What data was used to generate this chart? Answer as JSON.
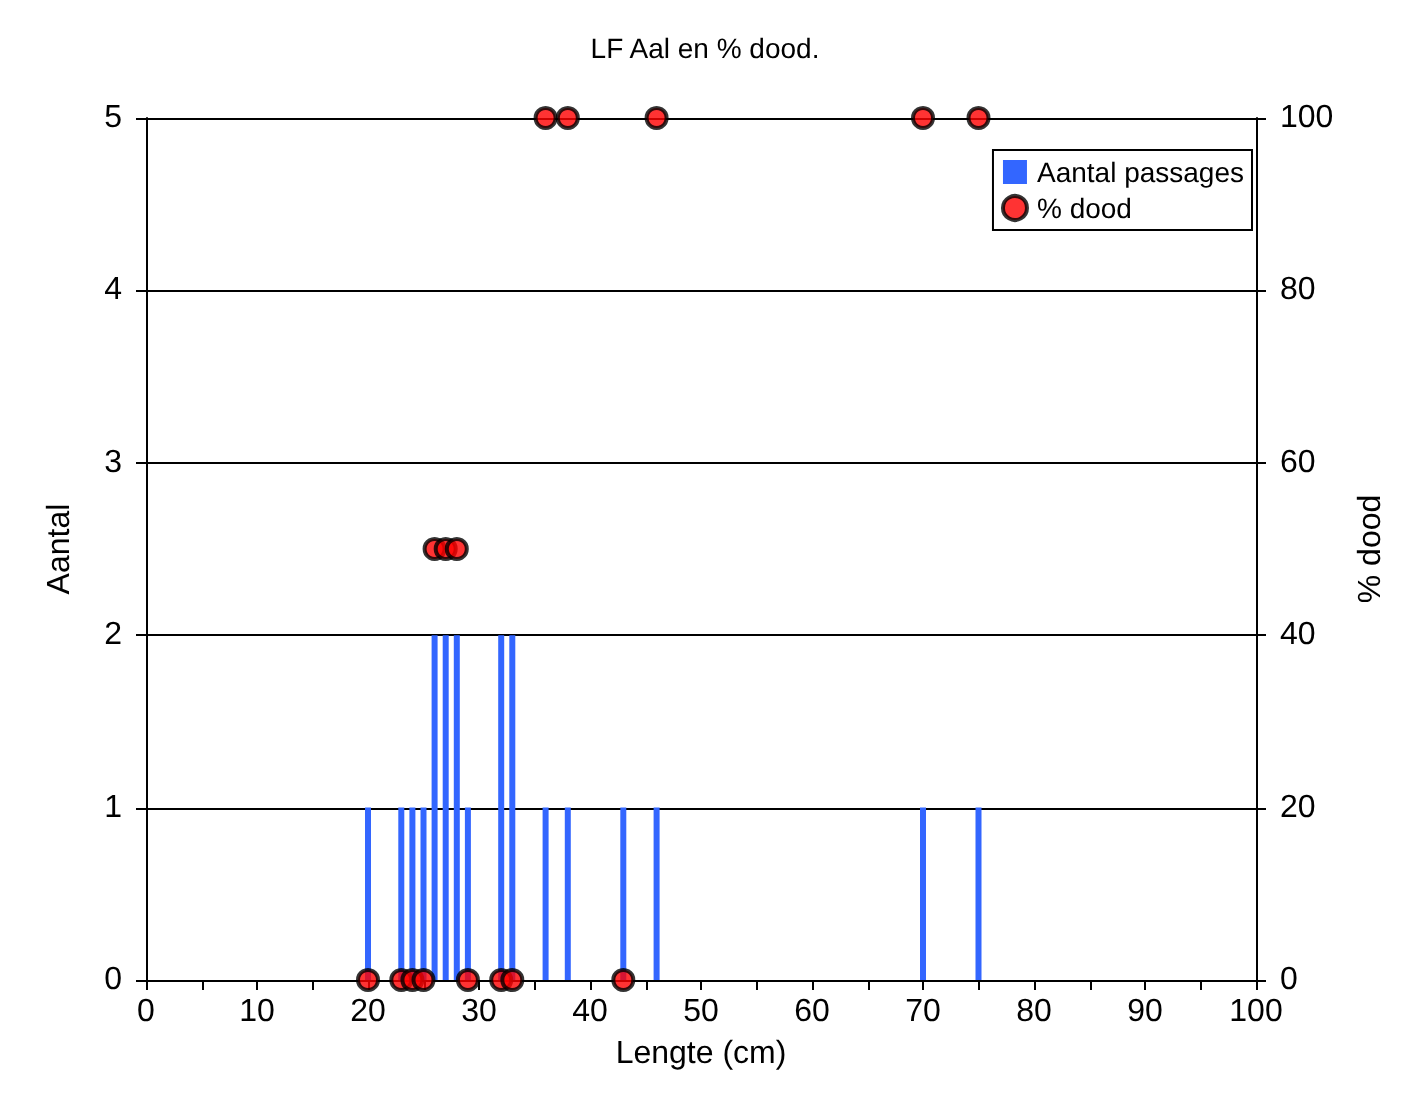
{
  "chart_data": {
    "type": "bar",
    "title": "LF Aal en % dood.",
    "xlabel": "Lengte (cm)",
    "ylabel": "Aantal",
    "y2label": "% dood",
    "series": [
      {
        "name": "Aantal passages",
        "color": "#3366ff",
        "x": [
          20,
          23,
          24,
          25,
          26,
          27,
          28,
          29,
          32,
          33,
          36,
          38,
          43,
          46,
          70,
          75
        ],
        "values": [
          1,
          1,
          1,
          1,
          2,
          2,
          2,
          1,
          2,
          2,
          1,
          1,
          1,
          1,
          1,
          1
        ]
      },
      {
        "name": "% dood",
        "type": "scatter",
        "axis": "y2",
        "color": "#ff0000",
        "marker": "circle",
        "x": [
          20,
          23,
          24,
          25,
          26,
          27,
          28,
          29,
          32,
          33,
          36,
          38,
          43,
          46,
          70,
          75
        ],
        "values": [
          0,
          0,
          0,
          0,
          50,
          50,
          50,
          0,
          0,
          0,
          100,
          100,
          0,
          100,
          100,
          100
        ]
      }
    ],
    "xlim": [
      0,
      100
    ],
    "xticks": [
      0,
      {
        "value": 5,
        "label": null
      },
      10,
      {
        "value": 15,
        "label": null
      },
      20,
      {
        "value": 25,
        "label": null
      },
      30,
      {
        "value": 35,
        "label": null
      },
      40,
      {
        "value": 45,
        "label": null
      },
      50,
      {
        "value": 55,
        "label": null
      },
      60,
      {
        "value": 65,
        "label": null
      },
      70,
      {
        "value": 75,
        "label": null
      },
      80,
      {
        "value": 85,
        "label": null
      },
      90,
      {
        "value": 95,
        "label": null
      },
      100
    ],
    "ylim": [
      0,
      5
    ],
    "yticks": [
      0,
      1,
      2,
      3,
      4,
      5
    ],
    "y2lim": [
      0,
      100
    ],
    "y2ticks": [
      0,
      20,
      40,
      60,
      80,
      100
    ],
    "grid": "y",
    "legend": "top right"
  }
}
